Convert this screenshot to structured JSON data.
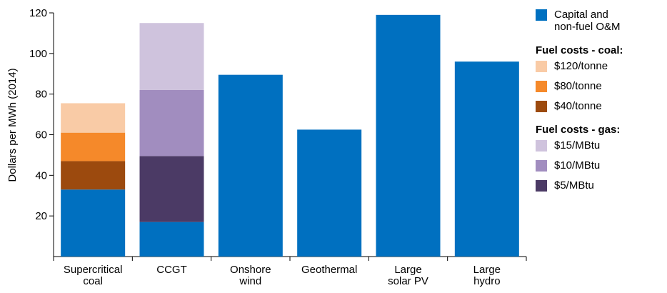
{
  "chart_data": {
    "type": "bar",
    "stacked": true,
    "categories": [
      "Supercritical\ncoal",
      "CCGT",
      "Onshore\nwind",
      "Geothermal",
      "Large\nsolar PV",
      "Large\nhydro"
    ],
    "ylabel": "Dollars per MWh (2014)",
    "ylim": [
      0,
      120
    ],
    "yticks": [
      20,
      40,
      60,
      80,
      100,
      120
    ],
    "grid": false,
    "legend_position": "right",
    "series": [
      {
        "name": "Capital and\nnon-fuel O&M",
        "color": "#0070C0",
        "values": [
          33,
          17,
          89.5,
          62.5,
          119,
          96
        ]
      },
      {
        "name": "$40/tonne",
        "color": "#9C4A0E",
        "values": [
          14,
          0,
          0,
          0,
          0,
          0
        ]
      },
      {
        "name": "$80/tonne",
        "color": "#F5892A",
        "values": [
          14,
          0,
          0,
          0,
          0,
          0
        ]
      },
      {
        "name": "$120/tonne",
        "color": "#F9CBA6",
        "values": [
          14.5,
          0,
          0,
          0,
          0,
          0
        ]
      },
      {
        "name": "$5/MBtu",
        "color": "#4B3A65",
        "values": [
          0,
          32.5,
          0,
          0,
          0,
          0
        ]
      },
      {
        "name": "$10/MBtu",
        "color": "#A18DBF",
        "values": [
          0,
          32.5,
          0,
          0,
          0,
          0
        ]
      },
      {
        "name": "$15/MBtu",
        "color": "#CFC3DD",
        "values": [
          0,
          33,
          0,
          0,
          0,
          0
        ]
      }
    ]
  },
  "legend": {
    "groups": [
      {
        "heading": "",
        "items": [
          "Capital and\nnon-fuel O&M"
        ]
      },
      {
        "heading": "Fuel costs - coal:",
        "items": [
          "$120/tonne",
          "$80/tonne",
          "$40/tonne"
        ]
      },
      {
        "heading": "Fuel costs - gas:",
        "items": [
          "$15/MBtu",
          "$10/MBtu",
          "$5/MBtu"
        ]
      }
    ]
  }
}
